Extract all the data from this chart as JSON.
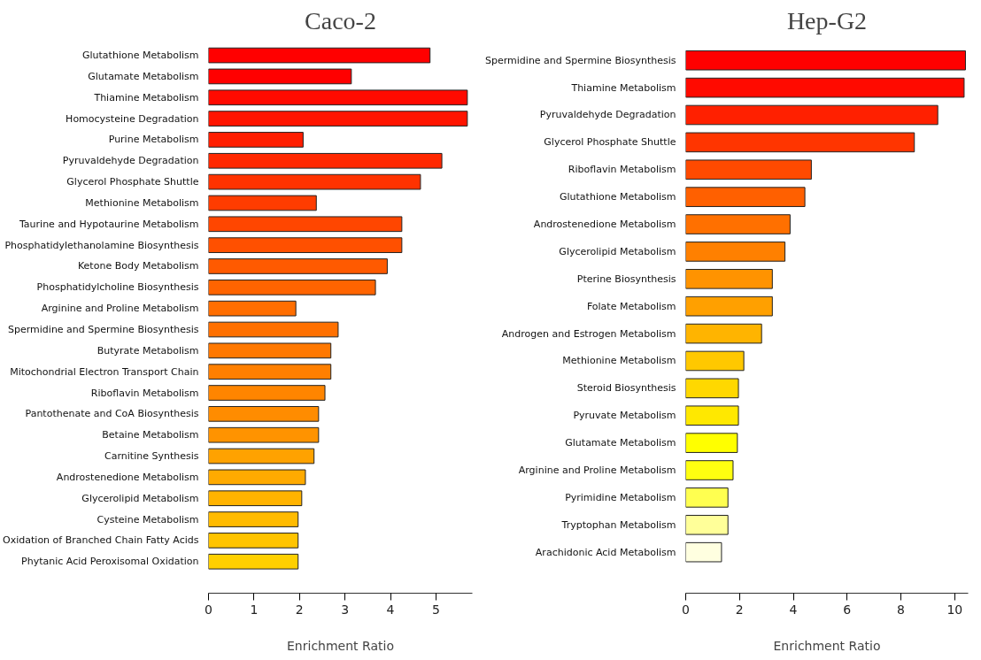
{
  "chart_data": [
    {
      "type": "bar",
      "orientation": "horizontal",
      "title": "Caco-2",
      "xlabel": "Enrichment Ratio",
      "categories": [
        "Glutathione Metabolism",
        "Glutamate Metabolism",
        "Thiamine Metabolism",
        "Homocysteine Degradation",
        "Purine Metabolism",
        "Pyruvaldehyde Degradation",
        "Glycerol Phosphate Shuttle",
        "Methionine Metabolism",
        "Taurine and Hypotaurine Metabolism",
        "Phosphatidylethanolamine Biosynthesis",
        "Ketone Body Metabolism",
        "Phosphatidylcholine Biosynthesis",
        "Arginine and Proline Metabolism",
        "Spermidine and Spermine Biosynthesis",
        "Butyrate Metabolism",
        "Mitochondrial Electron Transport Chain",
        "Riboflavin Metabolism",
        "Pantothenate and CoA Biosynthesis",
        "Betaine Metabolism",
        "Carnitine Synthesis",
        "Androstenedione Metabolism",
        "Glycerolipid Metabolism",
        "Cysteine Metabolism",
        "Oxidation of Branched Chain Fatty Acids",
        "Phytanic Acid Peroxisomal Oxidation"
      ],
      "values": [
        4.87,
        3.14,
        5.69,
        5.69,
        2.08,
        5.13,
        4.66,
        2.37,
        4.25,
        4.25,
        3.93,
        3.67,
        1.92,
        2.85,
        2.69,
        2.69,
        2.56,
        2.42,
        2.42,
        2.32,
        2.13,
        2.05,
        1.97,
        1.97,
        1.97
      ],
      "colors": [
        "#ff0000",
        "#ff0000",
        "#ff0a00",
        "#ff1400",
        "#ff1e00",
        "#ff2800",
        "#ff3200",
        "#ff3c00",
        "#ff4600",
        "#ff5000",
        "#ff5a00",
        "#ff6400",
        "#ff6e00",
        "#ff7000",
        "#ff7800",
        "#ff7f00",
        "#ff8500",
        "#ff8c00",
        "#ff9300",
        "#ffa200",
        "#ffaa00",
        "#ffb300",
        "#ffbb00",
        "#ffc400",
        "#ffd000"
      ],
      "xlim": [
        0,
        5.8
      ],
      "xticks": [
        0,
        1,
        2,
        3,
        4,
        5
      ]
    },
    {
      "type": "bar",
      "orientation": "horizontal",
      "title": "Hep-G2",
      "xlabel": "Enrichment Ratio",
      "categories": [
        "Spermidine and Spermine Biosynthesis",
        "Thiamine Metabolism",
        "Pyruvaldehyde Degradation",
        "Glycerol Phosphate Shuttle",
        "Riboflavin Metabolism",
        "Glutathione Metabolism",
        "Androstenedione Metabolism",
        "Glycerolipid Metabolism",
        "Pterine Biosynthesis",
        "Folate Metabolism",
        "Androgen and Estrogen Metabolism",
        "Methionine Metabolism",
        "Steroid Biosynthesis",
        "Pyruvate Metabolism",
        "Glutamate Metabolism",
        "Arginine and Proline Metabolism",
        "Pyrimidine Metabolism",
        "Tryptophan Metabolism",
        "Arachidonic Acid Metabolism"
      ],
      "values": [
        10.4,
        10.35,
        9.37,
        8.5,
        4.67,
        4.43,
        3.88,
        3.69,
        3.22,
        3.22,
        2.82,
        2.16,
        1.96,
        1.96,
        1.92,
        1.76,
        1.57,
        1.57,
        1.33
      ],
      "colors": [
        "#ff0000",
        "#ff0a00",
        "#ff2000",
        "#ff3500",
        "#ff4a00",
        "#ff6000",
        "#ff7000",
        "#ff8000",
        "#ff9300",
        "#ffa000",
        "#ffb400",
        "#ffc800",
        "#ffd800",
        "#ffe800",
        "#ffff00",
        "#ffff10",
        "#ffff50",
        "#ffff99",
        "#ffffe0"
      ],
      "xlim": [
        0,
        10.5
      ],
      "xticks": [
        0,
        2,
        4,
        6,
        8,
        10
      ]
    }
  ]
}
